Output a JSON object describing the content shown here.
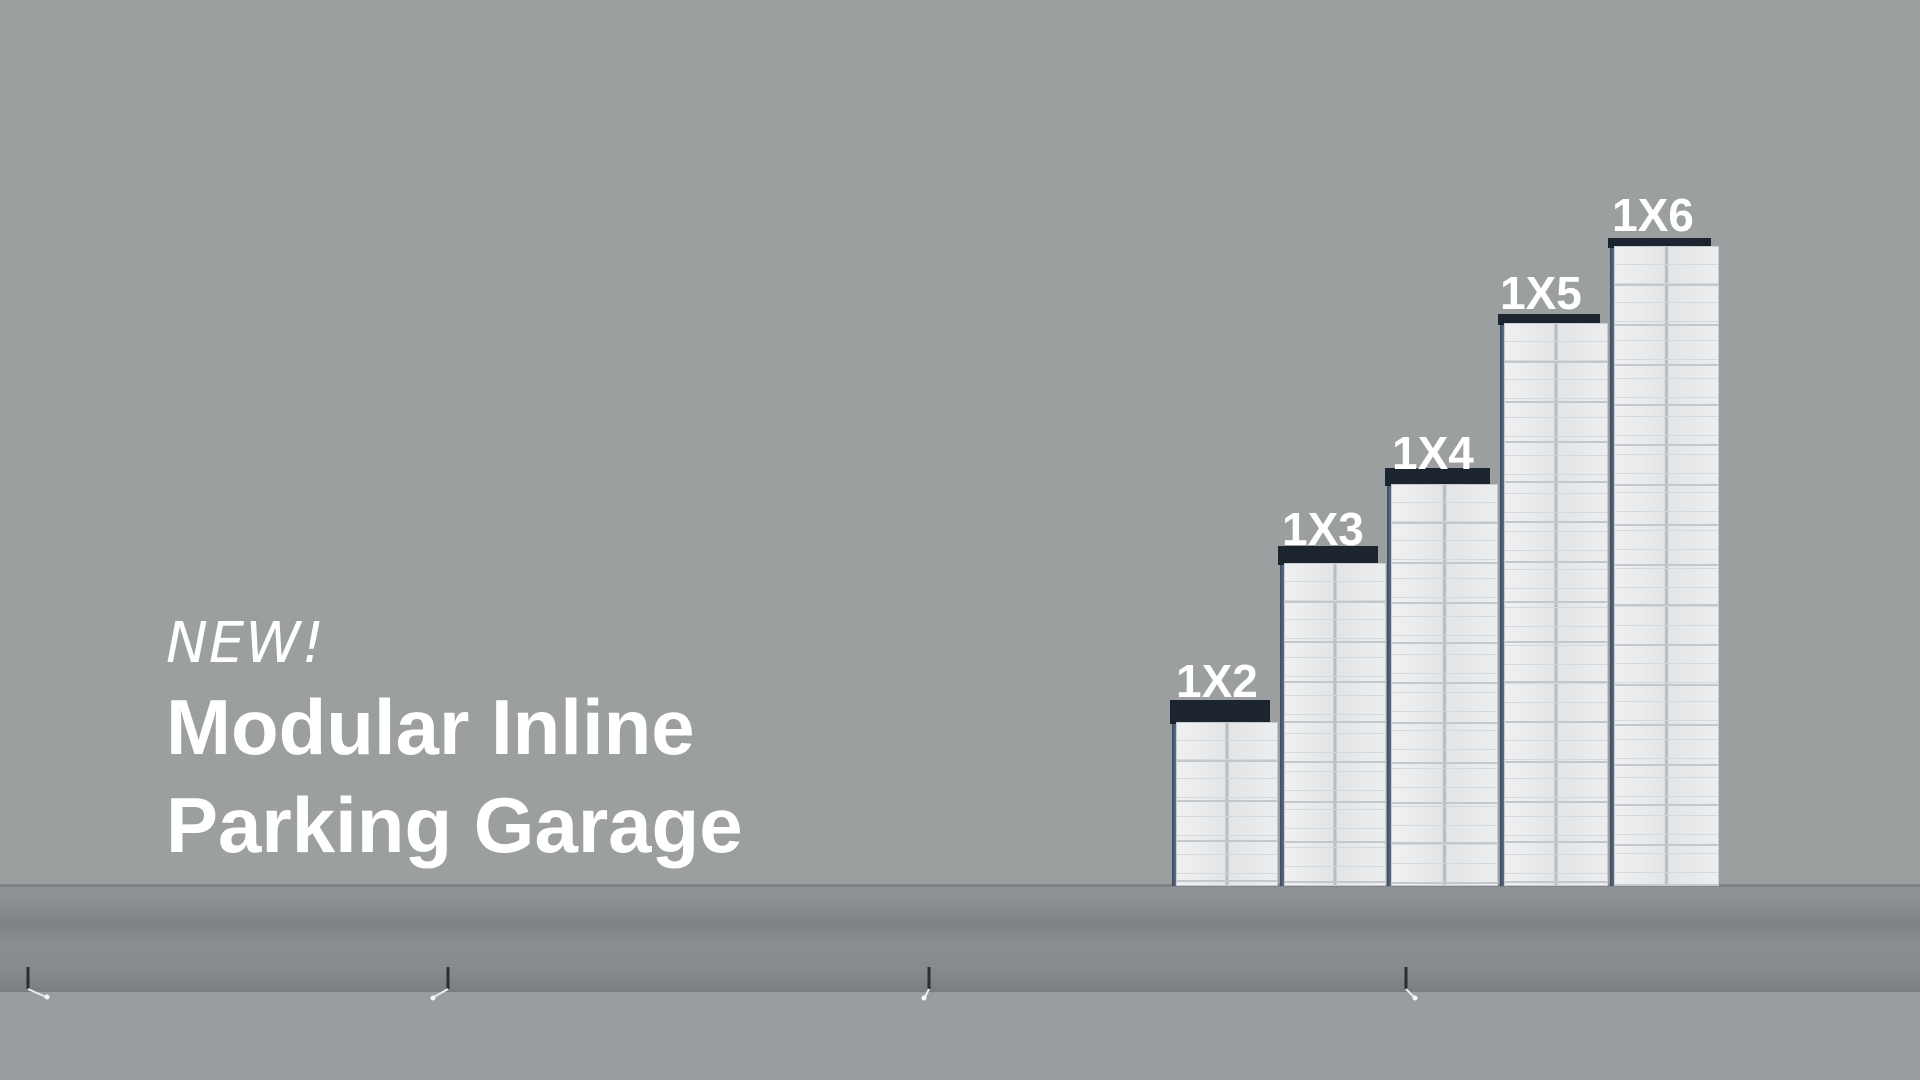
{
  "headline": {
    "tag": "NEW!",
    "title_line1": "Modular Inline",
    "title_line2": "Parking Garage"
  },
  "configurations": [
    {
      "label": "1X2",
      "levels": 2
    },
    {
      "label": "1X3",
      "levels": 3
    },
    {
      "label": "1X4",
      "levels": 4
    },
    {
      "label": "1X5",
      "levels": 5
    },
    {
      "label": "1X6",
      "levels": 6
    }
  ],
  "colors": {
    "background": "#9c9f9f",
    "text": "#ffffff",
    "roof": "#1c2430",
    "building": "#e4e6e8"
  }
}
